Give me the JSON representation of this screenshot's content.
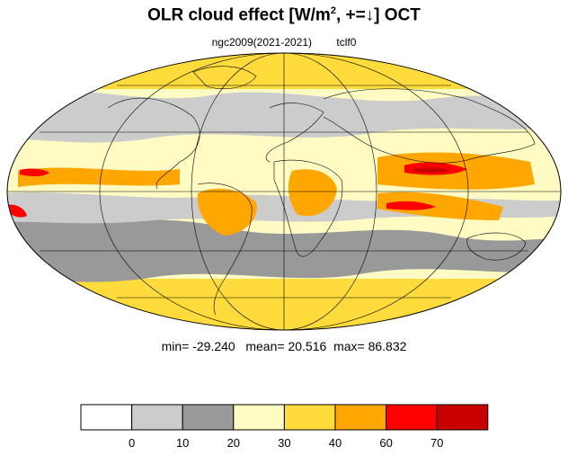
{
  "title": {
    "main": "OLR cloud effect [W/m",
    "superscript": "2",
    "suffix": ", +=↓]  OCT"
  },
  "subtitle": {
    "run": "ngc2009(2021-2021)",
    "variable": "tclf0"
  },
  "stats": {
    "min_label": "min=",
    "min": "-29.240",
    "mean_label": "mean=",
    "mean": "20.516",
    "max_label": "max=",
    "max": "86.832"
  },
  "map": {
    "projection": "mollweide",
    "ocean_fill": "#ffffff",
    "grid_color": "#000000",
    "coastline_color": "#000000"
  },
  "colorbar": {
    "bins": [
      {
        "color": "#ffffff"
      },
      {
        "color": "#cccccc"
      },
      {
        "color": "#999999"
      },
      {
        "color": "#fffbc3"
      },
      {
        "color": "#ffdc3c"
      },
      {
        "color": "#ffa700"
      },
      {
        "color": "#ff0000"
      },
      {
        "color": "#c80000"
      }
    ],
    "tick_labels": [
      "0",
      "10",
      "20",
      "30",
      "40",
      "60",
      "70"
    ]
  }
}
